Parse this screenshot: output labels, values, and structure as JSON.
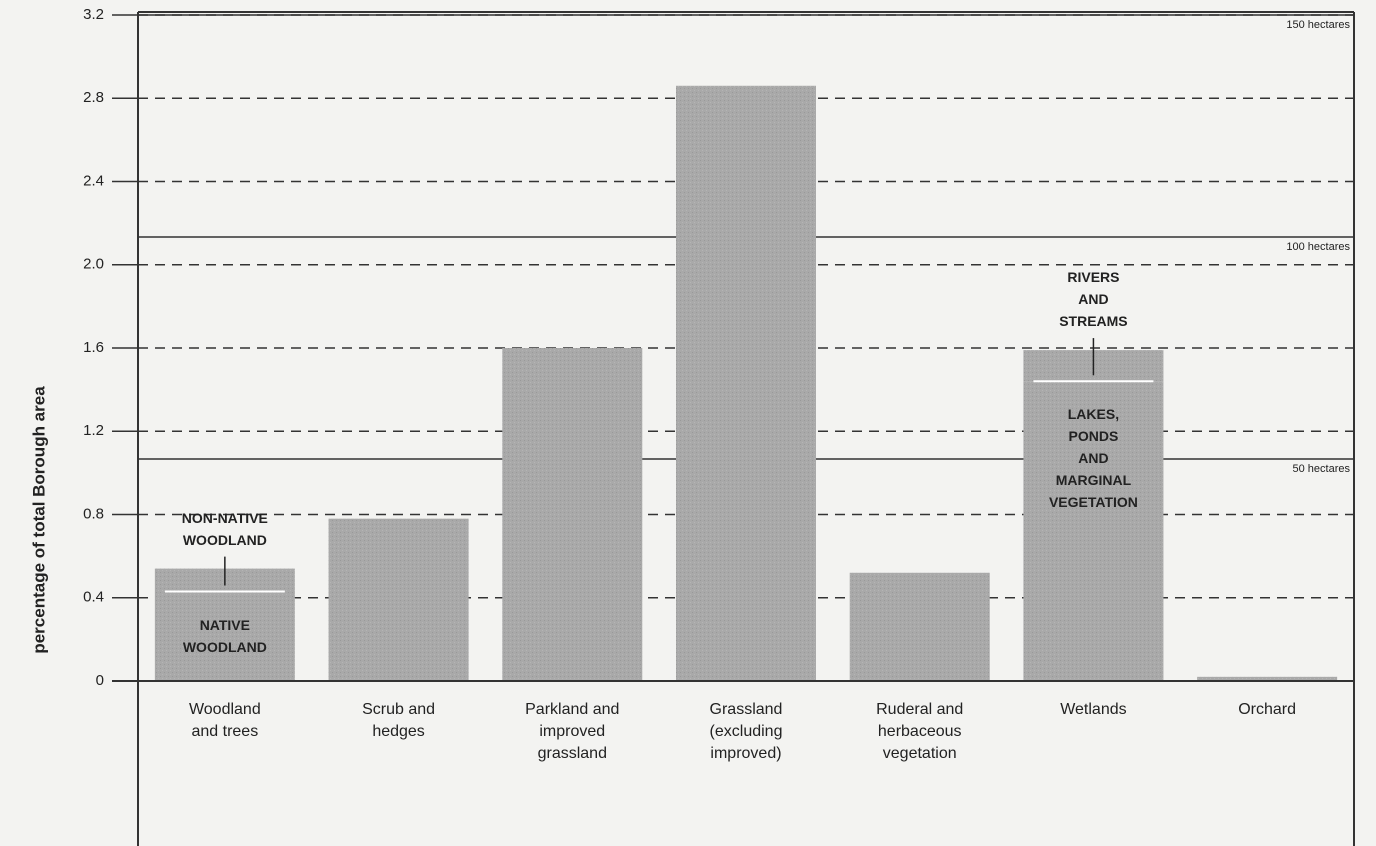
{
  "chart_data": {
    "type": "bar",
    "ylabel": "percentage of total Borough area",
    "categories": [
      "Woodland\nand trees",
      "Scrub and\nhedges",
      "Parkland and\nimproved\ngrassland",
      "Grassland\n(excluding\nimproved)",
      "Ruderal and\nherbaceous\nvegetation",
      "Wetlands",
      "Orchard"
    ],
    "series": [
      {
        "color": "#a9a9a9",
        "values": [
          0.43,
          0.78,
          1.6,
          2.86,
          0.52,
          1.44,
          0.02
        ],
        "labels": [
          "NATIVE\nWOODLAND",
          null,
          null,
          null,
          null,
          "LAKES,\nPONDS\nAND\nMARGINAL\nVEGETATION",
          null
        ]
      },
      {
        "color": "#a9a9a9",
        "values": [
          0.11,
          null,
          null,
          null,
          null,
          0.15,
          null
        ],
        "labels": [
          "NON-NATIVE\nWOODLAND",
          null,
          null,
          null,
          null,
          "RIVERS\nAND\nSTREAMS",
          null
        ]
      }
    ],
    "ylim": [
      0,
      3.2
    ],
    "yticks": [
      0,
      0.4,
      0.8,
      1.2,
      1.6,
      {
        "value": 2,
        "label": "2.0"
      },
      2.4,
      2.8,
      3.2
    ],
    "y2lim": [
      0,
      150
    ],
    "y2ticks": [
      {
        "value": 50,
        "label": "50 hectares"
      },
      {
        "value": 100,
        "label": "100 hectares"
      },
      {
        "value": 150,
        "label": "150 hectares"
      }
    ],
    "grid": true
  }
}
